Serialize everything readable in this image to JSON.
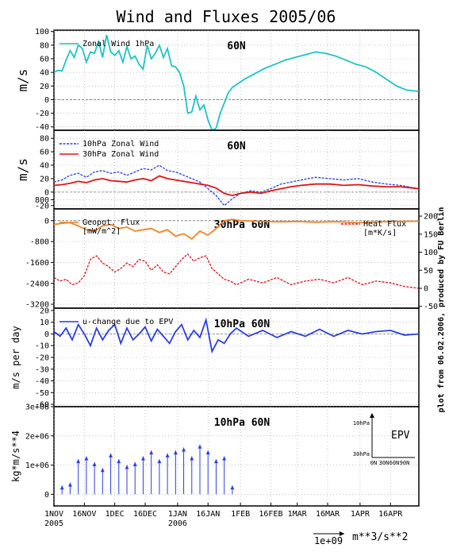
{
  "title": "Wind and Fluxes 2005/06",
  "side_note": "plot from 06.02.2006, produced by FU Berlin",
  "x_axis": {
    "ticks": [
      {
        "date": "2005-11-01",
        "label": "1NOV",
        "label2": "2005"
      },
      {
        "date": "2005-11-16",
        "label": "16NOV"
      },
      {
        "date": "2005-12-01",
        "label": "1DEC"
      },
      {
        "date": "2005-12-16",
        "label": "16DEC"
      },
      {
        "date": "2006-01-01",
        "label": "1JAN",
        "label2": "2006"
      },
      {
        "date": "2006-01-16",
        "label": "16JAN"
      },
      {
        "date": "2006-02-01",
        "label": "1FEB"
      },
      {
        "date": "2006-02-16",
        "label": "16FEB"
      },
      {
        "date": "2006-03-01",
        "label": "1MAR"
      },
      {
        "date": "2006-03-16",
        "label": "16MAR"
      },
      {
        "date": "2006-04-01",
        "label": "1APR"
      },
      {
        "date": "2006-04-16",
        "label": "16APR"
      }
    ],
    "range": [
      "2005-11-01",
      "2006-04-30"
    ]
  },
  "scale_arrow_label": "1e+09",
  "scale_units": "m**3/s**2",
  "chart_data": [
    {
      "type": "line",
      "panel_label": "60N",
      "ylabel": "m/s",
      "ylim": [
        -45,
        102
      ],
      "yticks": [
        100,
        80,
        60,
        40,
        20,
        0,
        -20,
        -40
      ],
      "zero_line": true,
      "series": [
        {
          "name": "Zonal Wind 1hPa",
          "color": "#1fc3c3",
          "dash": "solid",
          "x": [
            "2005-11-01",
            "2005-11-03",
            "2005-11-05",
            "2005-11-07",
            "2005-11-09",
            "2005-11-11",
            "2005-11-13",
            "2005-11-15",
            "2005-11-17",
            "2005-11-19",
            "2005-11-21",
            "2005-11-23",
            "2005-11-25",
            "2005-11-27",
            "2005-11-29",
            "2005-12-01",
            "2005-12-03",
            "2005-12-05",
            "2005-12-07",
            "2005-12-09",
            "2005-12-11",
            "2005-12-13",
            "2005-12-15",
            "2005-12-17",
            "2005-12-19",
            "2005-12-21",
            "2005-12-23",
            "2005-12-25",
            "2005-12-27",
            "2005-12-29",
            "2005-12-31",
            "2006-01-02",
            "2006-01-04",
            "2006-01-06",
            "2006-01-08",
            "2006-01-10",
            "2006-01-12",
            "2006-01-14",
            "2006-01-16",
            "2006-01-18",
            "2006-01-20",
            "2006-01-22",
            "2006-01-24",
            "2006-01-26",
            "2006-01-28",
            "2006-01-30",
            "2006-02-03",
            "2006-02-08",
            "2006-02-13",
            "2006-02-18",
            "2006-02-23",
            "2006-02-28",
            "2006-03-05",
            "2006-03-10",
            "2006-03-15",
            "2006-03-20",
            "2006-03-25",
            "2006-03-30",
            "2006-04-04",
            "2006-04-09",
            "2006-04-14",
            "2006-04-19",
            "2006-04-24",
            "2006-04-30"
          ],
          "values": [
            40,
            43,
            42,
            58,
            72,
            62,
            80,
            75,
            55,
            70,
            68,
            85,
            62,
            95,
            70,
            65,
            72,
            55,
            78,
            60,
            64,
            52,
            45,
            80,
            60,
            68,
            80,
            62,
            75,
            50,
            48,
            40,
            20,
            -20,
            -18,
            5,
            -15,
            -8,
            -30,
            -45,
            -42,
            -20,
            -5,
            10,
            18,
            22,
            30,
            38,
            46,
            52,
            58,
            62,
            66,
            70,
            68,
            64,
            58,
            52,
            48,
            40,
            30,
            20,
            14,
            12
          ]
        }
      ]
    },
    {
      "type": "line",
      "panel_label": "60N",
      "ylabel": "m/s",
      "ylim": [
        -25,
        92
      ],
      "yticks": [
        80,
        60,
        40,
        20,
        0,
        -20
      ],
      "zero_line": true,
      "series": [
        {
          "name": "10hPa Zonal Wind",
          "color": "#2a3fe0",
          "dash": "dashed",
          "x": [
            "2005-11-01",
            "2005-11-05",
            "2005-11-09",
            "2005-11-13",
            "2005-11-17",
            "2005-11-21",
            "2005-11-25",
            "2005-11-29",
            "2005-12-03",
            "2005-12-07",
            "2005-12-11",
            "2005-12-15",
            "2005-12-19",
            "2005-12-23",
            "2005-12-27",
            "2005-12-31",
            "2006-01-04",
            "2006-01-08",
            "2006-01-12",
            "2006-01-16",
            "2006-01-20",
            "2006-01-24",
            "2006-01-28",
            "2006-02-01",
            "2006-02-06",
            "2006-02-11",
            "2006-02-16",
            "2006-02-21",
            "2006-02-26",
            "2006-03-03",
            "2006-03-10",
            "2006-03-17",
            "2006-03-24",
            "2006-03-31",
            "2006-04-07",
            "2006-04-14",
            "2006-04-21",
            "2006-04-30"
          ],
          "values": [
            15,
            18,
            25,
            28,
            22,
            30,
            32,
            28,
            30,
            25,
            30,
            35,
            33,
            40,
            32,
            30,
            25,
            20,
            15,
            5,
            -5,
            -20,
            -10,
            -2,
            2,
            0,
            5,
            12,
            15,
            18,
            22,
            20,
            18,
            20,
            15,
            12,
            10,
            5
          ]
        },
        {
          "name": "30hPa Zonal Wind",
          "color": "#e01515",
          "dash": "solid",
          "x": [
            "2005-11-01",
            "2005-11-05",
            "2005-11-09",
            "2005-11-13",
            "2005-11-17",
            "2005-11-21",
            "2005-11-25",
            "2005-11-29",
            "2005-12-03",
            "2005-12-07",
            "2005-12-11",
            "2005-12-15",
            "2005-12-19",
            "2005-12-23",
            "2005-12-27",
            "2005-12-31",
            "2006-01-04",
            "2006-01-08",
            "2006-01-12",
            "2006-01-16",
            "2006-01-20",
            "2006-01-24",
            "2006-01-28",
            "2006-02-01",
            "2006-02-06",
            "2006-02-11",
            "2006-02-16",
            "2006-02-21",
            "2006-02-26",
            "2006-03-03",
            "2006-03-10",
            "2006-03-17",
            "2006-03-24",
            "2006-03-31",
            "2006-04-07",
            "2006-04-14",
            "2006-04-21",
            "2006-04-30"
          ],
          "values": [
            10,
            11,
            13,
            16,
            14,
            18,
            20,
            17,
            16,
            15,
            18,
            20,
            17,
            24,
            20,
            18,
            16,
            14,
            12,
            10,
            6,
            -2,
            -5,
            -2,
            0,
            -2,
            2,
            5,
            8,
            10,
            12,
            12,
            10,
            11,
            9,
            8,
            8,
            5
          ]
        }
      ]
    },
    {
      "type": "line",
      "panel_label": "30hPa 60N",
      "ylim_left": [
        -3350,
        450
      ],
      "yticks_left": [
        -3200,
        -2400,
        -1600,
        -800,
        0,
        800
      ],
      "ylim_right": [
        -55,
        220
      ],
      "yticks_right": [
        200,
        150,
        100,
        50,
        0,
        -50
      ],
      "zero_line": true,
      "series": [
        {
          "name": "Geopot. Flux",
          "unit": "[mW/m^2]",
          "axis": "left",
          "color": "#f08428",
          "dash": "solid",
          "x": [
            "2005-11-01",
            "2005-11-05",
            "2005-11-09",
            "2005-11-13",
            "2005-11-17",
            "2005-11-21",
            "2005-11-25",
            "2005-11-29",
            "2005-12-03",
            "2005-12-07",
            "2005-12-11",
            "2005-12-15",
            "2005-12-19",
            "2005-12-23",
            "2005-12-27",
            "2005-12-31",
            "2006-01-04",
            "2006-01-08",
            "2006-01-12",
            "2006-01-16",
            "2006-01-20",
            "2006-01-24",
            "2006-01-28",
            "2006-02-01",
            "2006-02-10",
            "2006-02-20",
            "2006-03-01",
            "2006-03-10",
            "2006-03-20",
            "2006-03-31",
            "2006-04-10",
            "2006-04-20",
            "2006-04-30"
          ],
          "values": [
            -150,
            -100,
            -80,
            -200,
            -350,
            -400,
            -200,
            -150,
            -300,
            -250,
            -400,
            -350,
            -300,
            -450,
            -350,
            -600,
            -500,
            -700,
            -400,
            -550,
            -300,
            0,
            50,
            0,
            -20,
            -50,
            -30,
            -60,
            -40,
            -80,
            -50,
            -30,
            -20
          ]
        },
        {
          "name": "Heat Flux",
          "unit": "[m*K/s]",
          "axis": "right",
          "color": "#d8141e",
          "dash": "dashed",
          "x": [
            "2005-11-01",
            "2005-11-04",
            "2005-11-07",
            "2005-11-10",
            "2005-11-13",
            "2005-11-16",
            "2005-11-19",
            "2005-11-22",
            "2005-11-25",
            "2005-11-28",
            "2005-12-01",
            "2005-12-04",
            "2005-12-07",
            "2005-12-10",
            "2005-12-13",
            "2005-12-16",
            "2005-12-19",
            "2005-12-22",
            "2005-12-25",
            "2005-12-28",
            "2005-12-31",
            "2006-01-03",
            "2006-01-06",
            "2006-01-09",
            "2006-01-12",
            "2006-01-15",
            "2006-01-18",
            "2006-01-21",
            "2006-01-24",
            "2006-01-27",
            "2006-01-30",
            "2006-02-05",
            "2006-02-12",
            "2006-02-19",
            "2006-02-26",
            "2006-03-05",
            "2006-03-12",
            "2006-03-19",
            "2006-03-26",
            "2006-04-02",
            "2006-04-09",
            "2006-04-16",
            "2006-04-23",
            "2006-04-30"
          ],
          "values": [
            30,
            20,
            25,
            10,
            15,
            35,
            80,
            90,
            70,
            60,
            45,
            55,
            70,
            60,
            80,
            75,
            50,
            65,
            45,
            40,
            60,
            80,
            95,
            75,
            85,
            90,
            55,
            40,
            25,
            20,
            10,
            25,
            15,
            30,
            10,
            20,
            25,
            15,
            30,
            10,
            20,
            15,
            5,
            0
          ]
        }
      ]
    },
    {
      "type": "line",
      "panel_label": "10hPa 60N",
      "ylabel": "m/s per day",
      "ylim": [
        -62,
        22
      ],
      "yticks": [
        20,
        10,
        0,
        -10,
        -20,
        -30,
        -40,
        -50,
        -60
      ],
      "zero_line": true,
      "series": [
        {
          "name": "u-change due to EPV",
          "color": "#2a3fe0",
          "dash": "solid",
          "x": [
            "2005-11-01",
            "2005-11-04",
            "2005-11-07",
            "2005-11-10",
            "2005-11-13",
            "2005-11-16",
            "2005-11-19",
            "2005-11-22",
            "2005-11-25",
            "2005-11-28",
            "2005-12-01",
            "2005-12-04",
            "2005-12-07",
            "2005-12-10",
            "2005-12-13",
            "2005-12-16",
            "2005-12-19",
            "2005-12-22",
            "2005-12-25",
            "2005-12-28",
            "2005-12-31",
            "2006-01-03",
            "2006-01-06",
            "2006-01-09",
            "2006-01-12",
            "2006-01-15",
            "2006-01-18",
            "2006-01-21",
            "2006-01-24",
            "2006-01-27",
            "2006-01-30",
            "2006-02-05",
            "2006-02-12",
            "2006-02-19",
            "2006-02-26",
            "2006-03-05",
            "2006-03-12",
            "2006-03-19",
            "2006-03-26",
            "2006-04-02",
            "2006-04-09",
            "2006-04-16",
            "2006-04-23",
            "2006-04-30"
          ],
          "values": [
            2,
            -2,
            5,
            -5,
            8,
            0,
            -10,
            5,
            -5,
            3,
            8,
            -8,
            5,
            -5,
            0,
            6,
            -6,
            4,
            -2,
            -8,
            2,
            8,
            -5,
            3,
            -3,
            12,
            -15,
            -5,
            -8,
            0,
            5,
            -2,
            3,
            -3,
            2,
            -2,
            4,
            -2,
            3,
            0,
            2,
            3,
            -1,
            0
          ]
        }
      ]
    },
    {
      "type": "scatter",
      "panel_label": "10hPa 60N",
      "ylabel": "kg*m/s**4",
      "ylim": [
        -400000,
        3000000
      ],
      "yticks": [
        {
          "v": 3000000,
          "label": "3e+06"
        },
        {
          "v": 2000000,
          "label": "2e+06"
        },
        {
          "v": 1000000,
          "label": "1e+06"
        },
        {
          "v": 0,
          "label": "0"
        }
      ],
      "inset": {
        "title": "EPV",
        "y_labels": [
          "10hPa",
          "30hPa"
        ],
        "x_labels": [
          "0N",
          "30N",
          "60N",
          "90N"
        ]
      },
      "series": [
        {
          "name": "EPV vectors",
          "color": "#2a3fe0",
          "x": [
            "2005-11-05",
            "2005-11-09",
            "2005-11-13",
            "2005-11-17",
            "2005-11-21",
            "2005-11-25",
            "2005-11-29",
            "2005-12-03",
            "2005-12-07",
            "2005-12-11",
            "2005-12-15",
            "2005-12-19",
            "2005-12-23",
            "2005-12-27",
            "2005-12-31",
            "2006-01-04",
            "2006-01-08",
            "2006-01-12",
            "2006-01-16",
            "2006-01-20",
            "2006-01-24",
            "2006-01-28"
          ],
          "values": [
            300000,
            400000,
            1200000,
            1300000,
            1100000,
            900000,
            1400000,
            1200000,
            1000000,
            1100000,
            1300000,
            1500000,
            1200000,
            1400000,
            1500000,
            1600000,
            1300000,
            1700000,
            1500000,
            1200000,
            1300000,
            300000
          ]
        }
      ]
    }
  ]
}
